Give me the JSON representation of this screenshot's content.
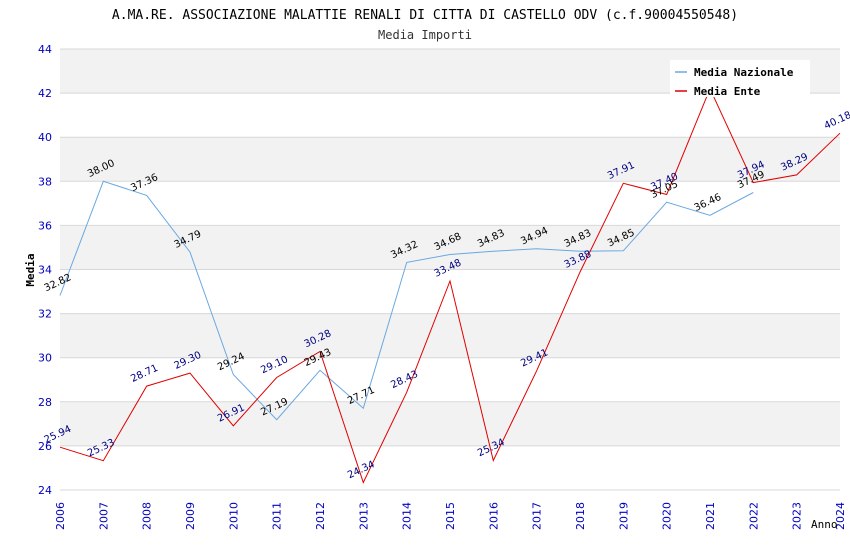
{
  "chart_data": {
    "type": "line",
    "title": "A.MA.RE. ASSOCIAZIONE MALATTIE RENALI DI CITTA DI CASTELLO ODV (c.f.90004550548)",
    "subtitle": "Media Importi",
    "xlabel": "Anno",
    "ylabel": "Media",
    "ylim": [
      24,
      44
    ],
    "yticks": [
      "24",
      "26",
      "28",
      "30",
      "32",
      "34",
      "36",
      "38",
      "40",
      "42",
      "44"
    ],
    "categories": [
      "2006",
      "2007",
      "2008",
      "2009",
      "2010",
      "2011",
      "2012",
      "2013",
      "2014",
      "2015",
      "2016",
      "2017",
      "2018",
      "2019",
      "2020",
      "2021",
      "2022",
      "2023",
      "2024"
    ],
    "grid": true,
    "legend_position": "top-right",
    "series": [
      {
        "name": "Media Nazionale",
        "color": "#6aa8e0",
        "label_color": "#000000",
        "values": [
          32.82,
          38.0,
          37.36,
          34.79,
          29.24,
          27.19,
          29.43,
          27.71,
          34.32,
          34.68,
          34.83,
          34.94,
          34.83,
          34.85,
          37.05,
          36.46,
          37.49,
          null,
          null
        ],
        "labels": [
          "32.82",
          "38.00",
          "37.36",
          "34.79",
          "29.24",
          "27.19",
          "29.43",
          "27.71",
          "34.32",
          "34.68",
          "34.83",
          "34.94",
          "34.83",
          "34.85",
          "37.05",
          "36.46",
          "37.49",
          "",
          ""
        ]
      },
      {
        "name": "Media Ente",
        "color": "#e00000",
        "label_color": "#000080",
        "values": [
          25.94,
          25.33,
          28.71,
          29.3,
          26.91,
          29.1,
          30.28,
          24.34,
          28.43,
          33.48,
          25.34,
          29.41,
          33.88,
          37.91,
          37.4,
          42.2,
          37.94,
          38.29,
          40.18
        ],
        "labels": [
          "25.94",
          "25.33",
          "28.71",
          "29.30",
          "26.91",
          "29.10",
          "30.28",
          "24.34",
          "28.43",
          "33.48",
          "25.34",
          "29.41",
          "33.88",
          "37.91",
          "37.40",
          "",
          "37.94",
          "38.29",
          "40.18"
        ]
      }
    ]
  },
  "colors": {
    "band_light": "#f2f2f2",
    "band_white": "#ffffff",
    "grid": "#d8d8d8",
    "axis_tick_text": "#0000c0",
    "title_text": "#000000",
    "subtitle_text": "#333333"
  }
}
